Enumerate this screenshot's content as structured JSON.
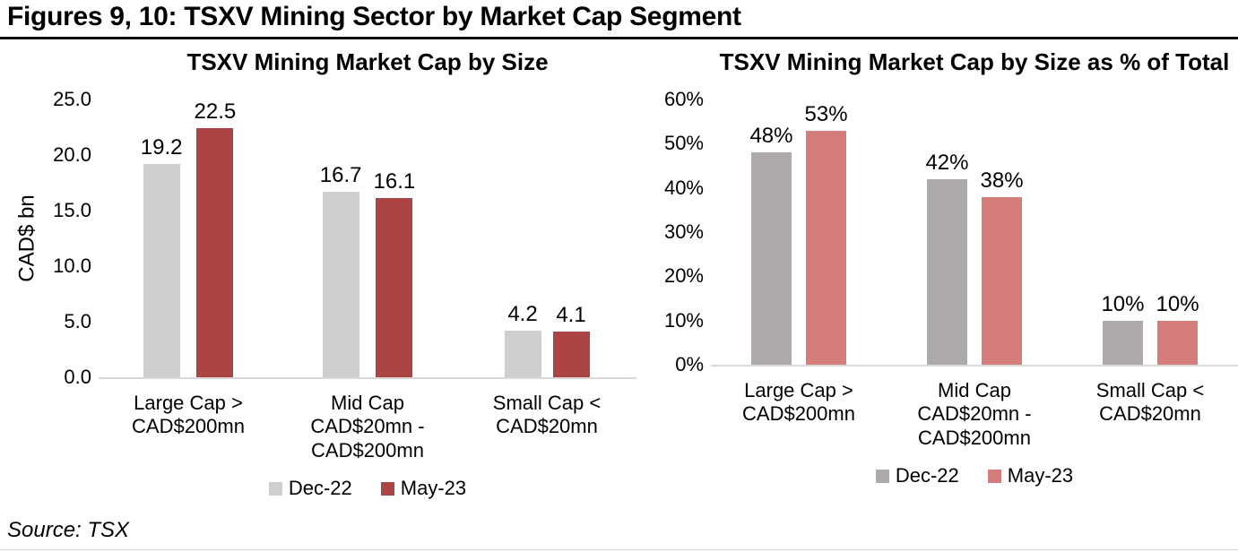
{
  "page": {
    "title": "Figures 9, 10: TSXV Mining Sector by Market Cap Segment",
    "source": "Source: TSX"
  },
  "chart_data": [
    {
      "type": "bar",
      "title": "TSXV Mining Market Cap by Size",
      "ylabel": "CAD$ bn",
      "xlabel": "",
      "categories": [
        "Large Cap >\nCAD$200mn",
        "Mid Cap\nCAD$20mn -\nCAD$200mn",
        "Small Cap <\nCAD$20mn"
      ],
      "series": [
        {
          "name": "Dec-22",
          "color": "#d1cecf",
          "values": [
            19.2,
            16.7,
            4.2
          ],
          "labels": [
            "19.2",
            "16.7",
            "4.2"
          ]
        },
        {
          "name": "May-23",
          "color": "#ab4543",
          "values": [
            22.5,
            16.1,
            4.1
          ],
          "labels": [
            "22.5",
            "16.1",
            "4.1"
          ]
        }
      ],
      "ylim": [
        0,
        25
      ],
      "yticks": [
        {
          "v": 0,
          "label": "0.0"
        },
        {
          "v": 5,
          "label": "5.0"
        },
        {
          "v": 10,
          "label": "10.0"
        },
        {
          "v": 15,
          "label": "15.0"
        },
        {
          "v": 20,
          "label": "20.0"
        },
        {
          "v": 25,
          "label": "25.0"
        }
      ],
      "grid": false,
      "legend_position": "bottom",
      "baseline_color": "#d9d9d9"
    },
    {
      "type": "bar",
      "title": "TSXV Mining Market Cap by Size as % of Total",
      "ylabel": "",
      "xlabel": "",
      "categories": [
        "Large Cap >\nCAD$200mn",
        "Mid Cap\nCAD$20mn -\nCAD$200mn",
        "Small Cap <\nCAD$20mn"
      ],
      "series": [
        {
          "name": "Dec-22",
          "color": "#aeaaaa",
          "values": [
            48,
            42,
            10
          ],
          "labels": [
            "48%",
            "42%",
            "10%"
          ]
        },
        {
          "name": "May-23",
          "color": "#d57d7b",
          "values": [
            53,
            38,
            10
          ],
          "labels": [
            "53%",
            "38%",
            "10%"
          ]
        }
      ],
      "ylim": [
        0,
        60
      ],
      "yticks": [
        {
          "v": 0,
          "label": "0%"
        },
        {
          "v": 10,
          "label": "10%"
        },
        {
          "v": 20,
          "label": "20%"
        },
        {
          "v": 30,
          "label": "30%"
        },
        {
          "v": 40,
          "label": "40%"
        },
        {
          "v": 50,
          "label": "50%"
        },
        {
          "v": 60,
          "label": "60%"
        }
      ],
      "grid": false,
      "legend_position": "bottom",
      "baseline_color": "#d9d9d9"
    }
  ]
}
